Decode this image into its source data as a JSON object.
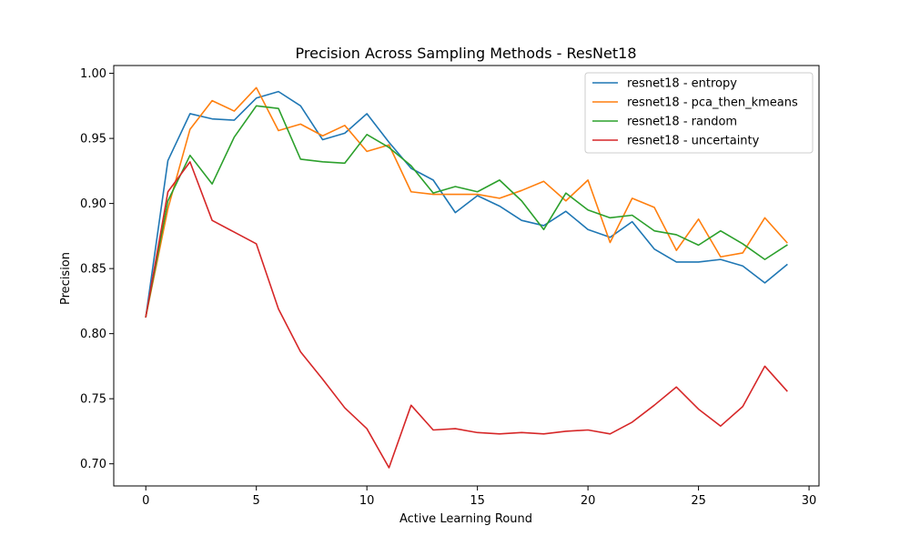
{
  "chart_data": {
    "type": "line",
    "title": "Precision Across Sampling Methods - ResNet18",
    "xlabel": "Active Learning Round",
    "ylabel": "Precision",
    "xlim": [
      -1.45,
      30.45
    ],
    "ylim": [
      0.683,
      1.006
    ],
    "xticks": [
      0,
      5,
      10,
      15,
      20,
      25,
      30
    ],
    "yticks": [
      0.7,
      0.75,
      0.8,
      0.85,
      0.9,
      0.95,
      1.0
    ],
    "grid": false,
    "legend_position": "top-right",
    "x": [
      0,
      1,
      2,
      3,
      4,
      5,
      6,
      7,
      8,
      9,
      10,
      11,
      12,
      13,
      14,
      15,
      16,
      17,
      18,
      19,
      20,
      21,
      22,
      23,
      24,
      25,
      26,
      27,
      28,
      29
    ],
    "series": [
      {
        "name": "resnet18 - entropy",
        "color": "#1f77b4",
        "values": [
          0.813,
          0.933,
          0.969,
          0.965,
          0.964,
          0.981,
          0.986,
          0.975,
          0.949,
          0.954,
          0.969,
          0.947,
          0.927,
          0.918,
          0.893,
          0.906,
          0.898,
          0.887,
          0.883,
          0.894,
          0.88,
          0.874,
          0.886,
          0.865,
          0.855,
          0.855,
          0.857,
          0.852,
          0.839,
          0.853
        ]
      },
      {
        "name": "resnet18 - pca_then_kmeans",
        "color": "#ff7f0e",
        "values": [
          0.813,
          0.896,
          0.957,
          0.979,
          0.971,
          0.989,
          0.956,
          0.961,
          0.952,
          0.96,
          0.94,
          0.945,
          0.909,
          0.907,
          0.907,
          0.907,
          0.904,
          0.91,
          0.917,
          0.902,
          0.918,
          0.87,
          0.904,
          0.897,
          0.864,
          0.888,
          0.859,
          0.862,
          0.889,
          0.87
        ]
      },
      {
        "name": "resnet18 - random",
        "color": "#2ca02c",
        "values": [
          0.813,
          0.902,
          0.937,
          0.915,
          0.951,
          0.975,
          0.973,
          0.934,
          0.932,
          0.931,
          0.953,
          0.943,
          0.929,
          0.908,
          0.913,
          0.909,
          0.918,
          0.902,
          0.88,
          0.908,
          0.895,
          0.889,
          0.891,
          0.879,
          0.876,
          0.868,
          0.879,
          0.869,
          0.857,
          0.868
        ]
      },
      {
        "name": "resnet18 - uncertainty",
        "color": "#d62728",
        "values": [
          0.813,
          0.909,
          0.932,
          0.887,
          0.878,
          0.869,
          0.819,
          0.786,
          0.765,
          0.743,
          0.727,
          0.697,
          0.745,
          0.726,
          0.727,
          0.724,
          0.723,
          0.724,
          0.723,
          0.725,
          0.726,
          0.723,
          0.732,
          0.745,
          0.759,
          0.742,
          0.729,
          0.744,
          0.775,
          0.756
        ]
      }
    ]
  }
}
